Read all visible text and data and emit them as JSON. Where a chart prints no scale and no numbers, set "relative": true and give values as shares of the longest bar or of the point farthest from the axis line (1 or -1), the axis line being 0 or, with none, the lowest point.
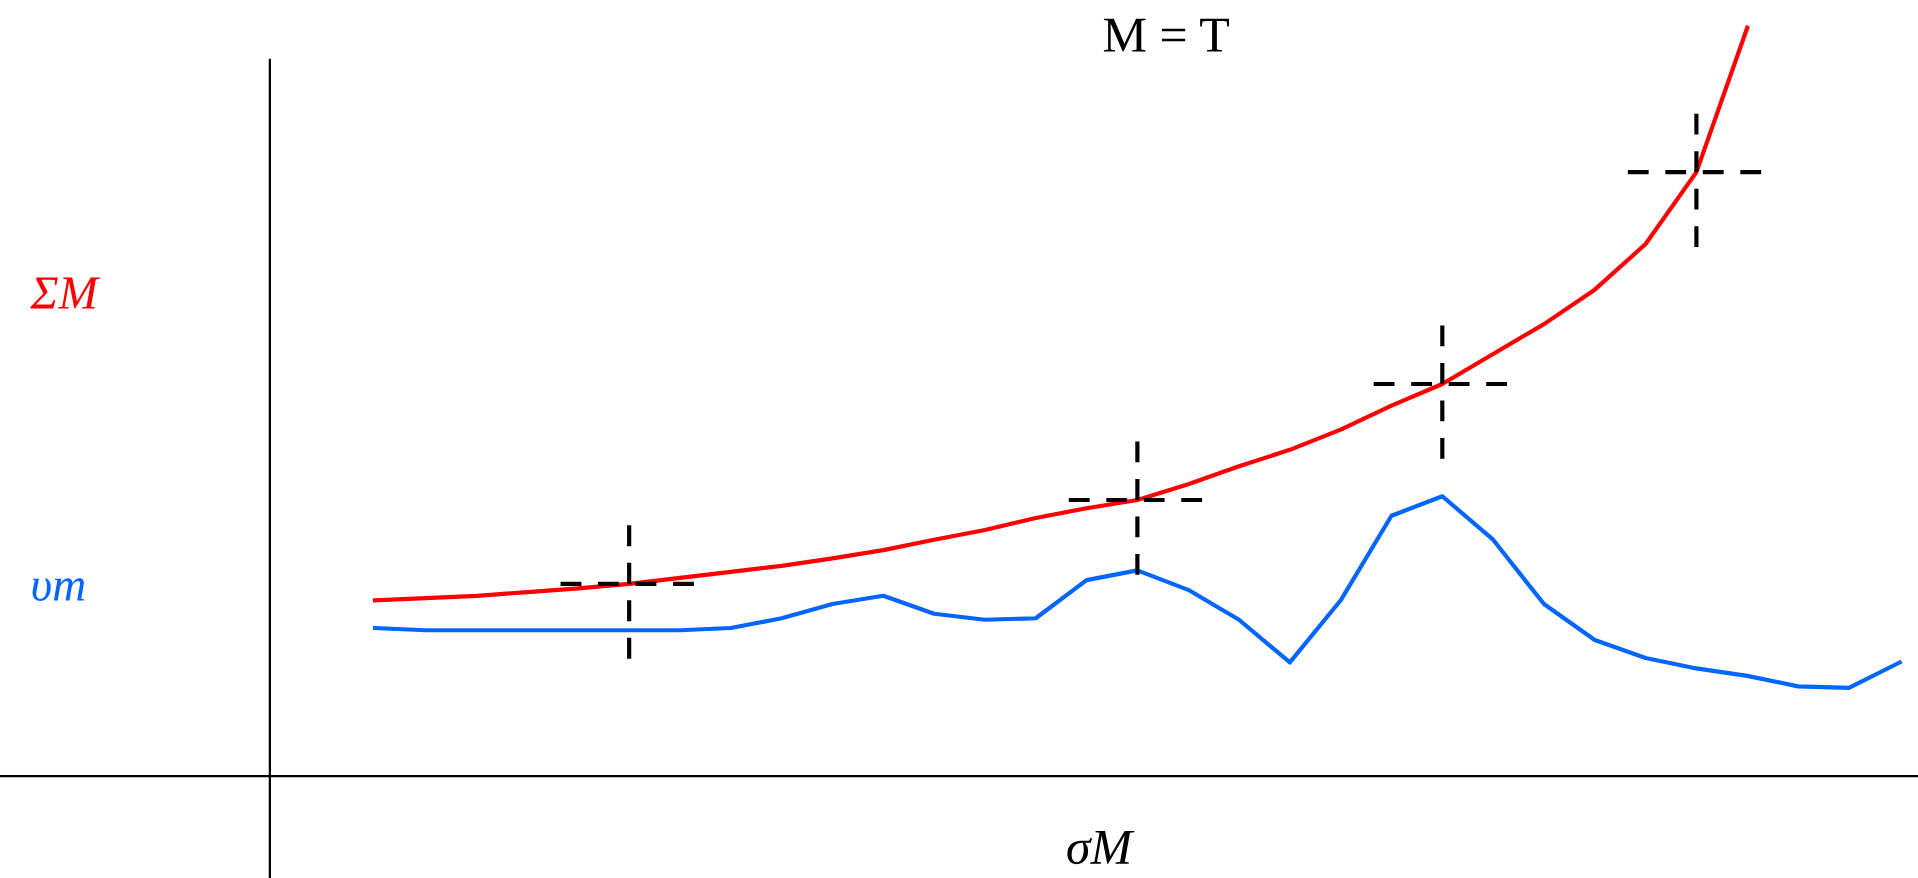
{
  "chart_data": {
    "type": "line",
    "title": "M = T",
    "xlabel": "σM",
    "relative": true,
    "categories": [
      null,
      null,
      null,
      null,
      null,
      null,
      null,
      null,
      null,
      null,
      null,
      null,
      null,
      null,
      null,
      null,
      null,
      null,
      null,
      null,
      null,
      null,
      null,
      null,
      null,
      null,
      null,
      null,
      null,
      null,
      null
    ],
    "series": [
      {
        "name": "ΣM",
        "color": "#ff0000",
        "values": [
          0.235,
          0.238,
          0.241,
          0.246,
          0.251,
          0.257,
          0.265,
          0.273,
          0.281,
          0.291,
          0.302,
          0.316,
          0.329,
          0.345,
          0.358,
          0.369,
          0.39,
          0.414,
          0.436,
          0.463,
          0.495,
          0.524,
          0.564,
          0.604,
          0.65,
          0.711,
          0.807,
          1.0,
          null,
          null,
          null
        ]
      },
      {
        "name": "υm",
        "color": "#0066ff",
        "values": [
          0.198,
          0.195,
          0.195,
          0.195,
          0.195,
          0.195,
          0.195,
          0.198,
          0.211,
          0.23,
          0.241,
          0.217,
          0.209,
          0.211,
          0.262,
          0.275,
          0.249,
          0.209,
          0.152,
          0.235,
          0.348,
          0.374,
          0.316,
          0.23,
          0.182,
          0.158,
          0.144,
          0.134,
          0.12,
          0.118,
          0.152
        ]
      }
    ]
  }
}
